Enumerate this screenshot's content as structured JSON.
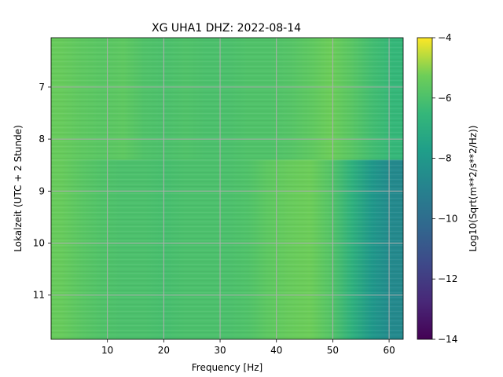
{
  "chart_data": {
    "type": "heatmap",
    "title": "XG UHA1  DHZ: 2022-08-14",
    "xlabel": "Frequency [Hz]",
    "ylabel": "Lokalzeit (UTC + 2 Stunde)",
    "xlim": [
      0,
      62.5
    ],
    "ylim": [
      11.85,
      6.05
    ],
    "x_ticks": [
      10,
      20,
      30,
      40,
      50,
      60
    ],
    "y_ticks": [
      7,
      8,
      9,
      10,
      11
    ],
    "grid": true,
    "colormap": "viridis",
    "colorbar": {
      "label": "Log10(Sqrt(m**2/s**2/Hz))",
      "min": -14,
      "max": -4,
      "ticks": [
        -4,
        -6,
        -8,
        -10,
        -12,
        -14
      ]
    },
    "rows": [
      {
        "time_start": 6.05,
        "time_end": 8.4,
        "values": [
          -5.4,
          -5.6,
          -5.7,
          -5.6,
          -5.9,
          -6.0,
          -5.9,
          -6.0,
          -6.0,
          -5.9,
          -5.9,
          -5.8,
          -5.6,
          -5.3,
          -5.7,
          -6.2,
          -6.5
        ]
      },
      {
        "time_start": 8.4,
        "time_end": 11.85,
        "values": [
          -5.4,
          -5.7,
          -5.9,
          -6.0,
          -6.0,
          -6.1,
          -6.0,
          -6.0,
          -6.0,
          -5.9,
          -5.6,
          -5.4,
          -5.3,
          -5.8,
          -6.8,
          -8.0,
          -8.7
        ]
      }
    ],
    "freq_bins_hz": [
      0,
      3.7,
      7.4,
      11,
      14.7,
      18.4,
      22.1,
      25.7,
      29.4,
      33.1,
      36.8,
      40.4,
      44.1,
      47.8,
      51.5,
      55.1,
      58.8,
      62.5
    ]
  }
}
